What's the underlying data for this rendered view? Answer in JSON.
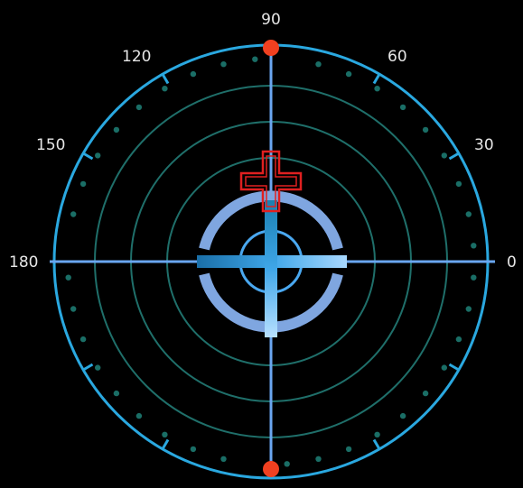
{
  "angle_labels": [
    {
      "id": "0",
      "text": "0"
    },
    {
      "id": "30",
      "text": "30"
    },
    {
      "id": "60",
      "text": "60"
    },
    {
      "id": "90",
      "text": "90"
    },
    {
      "id": "120",
      "text": "120"
    },
    {
      "id": "150",
      "text": "150"
    },
    {
      "id": "180",
      "text": "180"
    }
  ],
  "colors": {
    "background": "#000000",
    "outer_ring": "#2aa8e0",
    "axis_lines": "#6aa6f0",
    "inner_rings": "#1f6f6a",
    "dots": "#1a6e66",
    "bracket_ring": "#7fa6e0",
    "crosshair": "#3fa0e0",
    "marker_red": "#e02020",
    "marker_dot": "#f04020"
  },
  "icons": {
    "target_cross": "plus-cross-icon",
    "pole_markers": "dot-icon"
  }
}
